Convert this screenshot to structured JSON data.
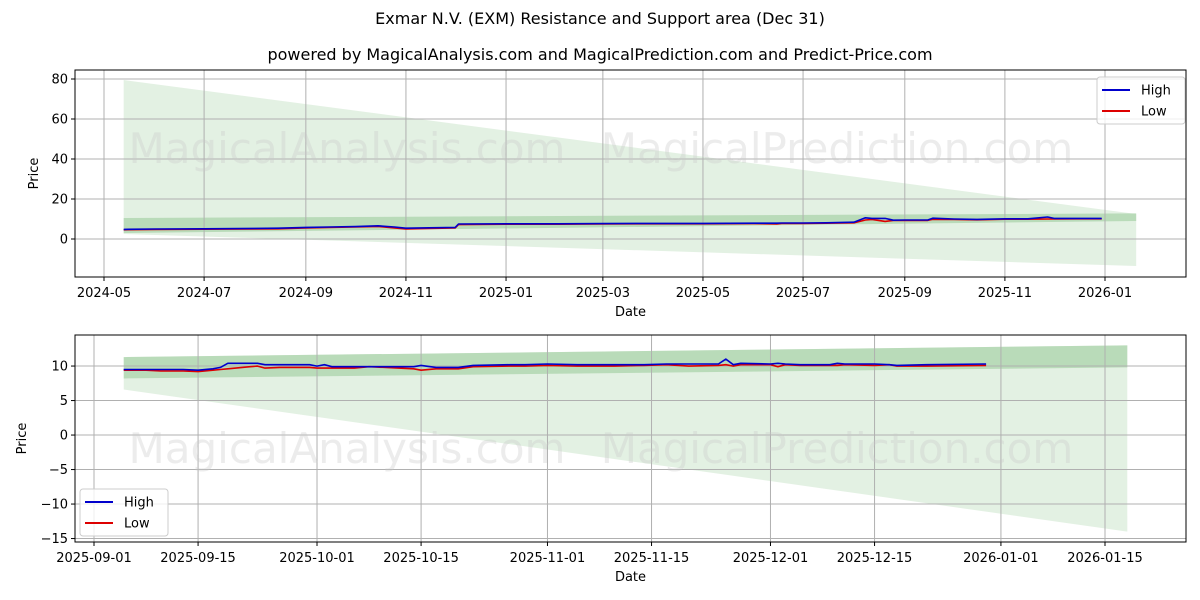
{
  "figure": {
    "suptitle": "Exmar N.V. (EXM) Resistance and Support area (Dec 31)",
    "subtitle": "powered by MagicalAnalysis.com and MagicalPrediction.com and Predict-Price.com",
    "watermark_left": "MagicalAnalysis.com",
    "watermark_right": "MagicalPrediction.com",
    "colors": {
      "high": "#0000cc",
      "low": "#dd0000",
      "band_light": "#d4ead4",
      "band_dark": "#a6d1a6",
      "grid": "#b0b0b0"
    }
  },
  "chart_data": [
    {
      "type": "line",
      "title": "powered by MagicalAnalysis.com and MagicalPrediction.com and Predict-Price.com",
      "xlabel": "Date",
      "ylabel": "Price",
      "ylim": [
        -19,
        84.5
      ],
      "yticks": [
        0,
        20,
        40,
        60,
        80
      ],
      "xticks": [
        "2024-05",
        "2024-07",
        "2024-09",
        "2024-11",
        "2025-01",
        "2025-03",
        "2025-05",
        "2025-07",
        "2025-09",
        "2025-11",
        "2026-01"
      ],
      "grid": true,
      "legend": {
        "position": "upper right",
        "entries": [
          "High",
          "Low"
        ]
      },
      "bands": [
        {
          "name": "wide-forecast-area",
          "x": [
            "2024-05-13",
            "2026-01-20"
          ],
          "upper": [
            79.5,
            12.5
          ],
          "lower": [
            2.5,
            -13.5
          ]
        },
        {
          "name": "resistance-support-area",
          "x": [
            "2024-05-13",
            "2026-01-20"
          ],
          "upper": [
            10.5,
            12.8
          ],
          "lower": [
            3.0,
            9.0
          ]
        }
      ],
      "x": [
        "2024-05-13",
        "2024-06-01",
        "2024-07-01",
        "2024-08-01",
        "2024-08-15",
        "2024-09-01",
        "2024-09-15",
        "2024-10-01",
        "2024-10-15",
        "2024-10-25",
        "2024-11-01",
        "2024-11-15",
        "2024-12-01",
        "2024-12-03",
        "2025-01-01",
        "2025-02-01",
        "2025-03-01",
        "2025-04-01",
        "2025-05-01",
        "2025-06-01",
        "2025-06-15",
        "2025-06-18",
        "2025-07-01",
        "2025-07-15",
        "2025-08-01",
        "2025-08-08",
        "2025-08-12",
        "2025-08-20",
        "2025-08-25",
        "2025-09-01",
        "2025-09-15",
        "2025-09-18",
        "2025-10-01",
        "2025-10-15",
        "2025-11-01",
        "2025-11-15",
        "2025-11-27",
        "2025-12-01",
        "2025-12-15",
        "2025-12-30"
      ],
      "series": [
        {
          "name": "High",
          "values": [
            4.8,
            5.0,
            5.1,
            5.3,
            5.4,
            5.8,
            6.0,
            6.2,
            6.6,
            6.0,
            5.4,
            5.6,
            5.8,
            7.5,
            7.6,
            7.6,
            7.7,
            7.8,
            7.8,
            7.9,
            7.9,
            8.0,
            8.0,
            8.1,
            8.4,
            10.6,
            10.3,
            10.3,
            9.4,
            9.5,
            9.5,
            10.4,
            10.0,
            9.8,
            10.1,
            10.1,
            11.0,
            10.3,
            10.3,
            10.3
          ]
        },
        {
          "name": "Low",
          "values": [
            4.6,
            4.8,
            4.9,
            5.0,
            5.1,
            5.5,
            5.8,
            6.0,
            6.3,
            5.5,
            5.0,
            5.3,
            5.5,
            7.2,
            7.4,
            7.4,
            7.5,
            7.6,
            7.6,
            7.7,
            7.5,
            7.8,
            7.8,
            7.9,
            8.1,
            9.5,
            9.8,
            8.8,
            9.3,
            9.3,
            9.3,
            9.8,
            9.8,
            9.6,
            9.9,
            9.9,
            10.0,
            10.0,
            10.1,
            10.1
          ]
        }
      ]
    },
    {
      "type": "line",
      "xlabel": "Date",
      "ylabel": "Price",
      "ylim": [
        -15.5,
        14.5
      ],
      "yticks": [
        -15,
        -10,
        -5,
        0,
        5,
        10
      ],
      "ytick_labels": [
        "−15",
        "−10",
        "−5",
        "0",
        "5",
        "10"
      ],
      "xticks": [
        "2025-09-01",
        "2025-09-15",
        "2025-10-01",
        "2025-10-15",
        "2025-11-01",
        "2025-11-15",
        "2025-12-01",
        "2025-12-15",
        "2026-01-01",
        "2026-01-15"
      ],
      "grid": true,
      "legend": {
        "position": "lower left",
        "entries": [
          "High",
          "Low"
        ]
      },
      "bands": [
        {
          "name": "wide-forecast-area",
          "x": [
            "2025-09-05",
            "2026-01-18"
          ],
          "upper": [
            11.3,
            13.0
          ],
          "lower": [
            6.6,
            -14.0
          ]
        },
        {
          "name": "resistance-support-area",
          "x": [
            "2025-09-05",
            "2026-01-18"
          ],
          "upper": [
            11.3,
            13.0
          ],
          "lower": [
            8.2,
            9.8
          ]
        }
      ],
      "x": [
        "2025-09-05",
        "2025-09-08",
        "2025-09-10",
        "2025-09-13",
        "2025-09-15",
        "2025-09-17",
        "2025-09-18",
        "2025-09-19",
        "2025-09-22",
        "2025-09-23",
        "2025-09-24",
        "2025-09-26",
        "2025-09-30",
        "2025-10-01",
        "2025-10-02",
        "2025-10-03",
        "2025-10-06",
        "2025-10-08",
        "2025-10-14",
        "2025-10-15",
        "2025-10-17",
        "2025-10-20",
        "2025-10-22",
        "2025-10-27",
        "2025-10-29",
        "2025-11-01",
        "2025-11-05",
        "2025-11-10",
        "2025-11-14",
        "2025-11-17",
        "2025-11-20",
        "2025-11-24",
        "2025-11-25",
        "2025-11-26",
        "2025-11-27",
        "2025-12-01",
        "2025-12-02",
        "2025-12-03",
        "2025-12-05",
        "2025-12-09",
        "2025-12-10",
        "2025-12-11",
        "2025-12-15",
        "2025-12-17",
        "2025-12-18",
        "2025-12-22",
        "2025-12-30"
      ],
      "series": [
        {
          "name": "High",
          "values": [
            9.5,
            9.5,
            9.5,
            9.5,
            9.4,
            9.6,
            9.8,
            10.4,
            10.4,
            10.4,
            10.2,
            10.2,
            10.2,
            10.0,
            10.2,
            9.9,
            9.9,
            9.9,
            9.9,
            10.1,
            9.8,
            9.8,
            10.1,
            10.2,
            10.2,
            10.3,
            10.2,
            10.2,
            10.2,
            10.3,
            10.3,
            10.3,
            11.0,
            10.2,
            10.4,
            10.3,
            10.4,
            10.3,
            10.2,
            10.2,
            10.4,
            10.3,
            10.3,
            10.2,
            10.1,
            10.2,
            10.3
          ]
        },
        {
          "name": "Low",
          "values": [
            9.4,
            9.4,
            9.3,
            9.3,
            9.2,
            9.4,
            9.5,
            9.6,
            9.9,
            10.0,
            9.7,
            9.8,
            9.8,
            9.7,
            9.7,
            9.7,
            9.7,
            9.9,
            9.6,
            9.4,
            9.6,
            9.6,
            9.9,
            10.0,
            10.0,
            10.1,
            10.0,
            10.0,
            10.1,
            10.2,
            10.0,
            10.1,
            10.2,
            10.0,
            10.2,
            10.2,
            9.9,
            10.2,
            10.1,
            10.1,
            10.1,
            10.2,
            10.1,
            10.2,
            10.0,
            10.0,
            10.1
          ]
        }
      ]
    }
  ]
}
